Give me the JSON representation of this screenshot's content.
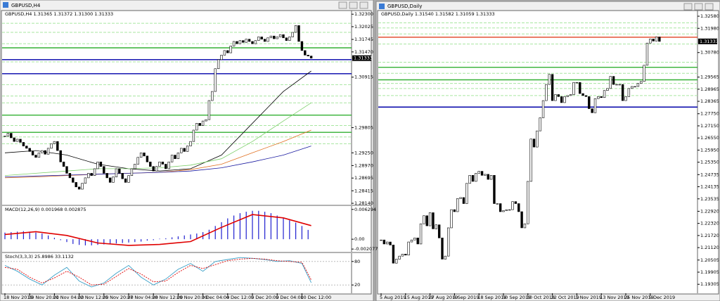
{
  "windows": [
    {
      "title": "GBPUSD,H4",
      "panels": [
        {
          "type": "candlestick",
          "header": "GBPUSD,H4  1.31365 1.31372 1.31300 1.31333",
          "last_price": 1.31333,
          "ylim": [
            1.2811,
            1.3238
          ],
          "yticks": [
            {
              "value": 1.323,
              "label": "1.32300"
            },
            1.32025,
            1.31745,
            {
              "value": 1.3147,
              "label": "1.31470"
            },
            1.30915,
            1.29805,
            {
              "value": 1.2925,
              "label": "1.29250"
            },
            {
              "value": 1.2897,
              "label": "1.28970"
            },
            1.28695,
            1.28415,
            {
              "value": 1.2814,
              "label": "1.28140"
            }
          ],
          "categories": [
            "18 Nov 2019",
            null,
            null,
            null,
            null,
            null,
            null,
            null,
            "19 Nov 20:00",
            null,
            null,
            null,
            null,
            null,
            null,
            null,
            "21 Nov 04:00",
            null,
            null,
            null,
            null,
            null,
            null,
            null,
            "22 Nov 12:00",
            null,
            null,
            null,
            null,
            null,
            null,
            null,
            "25 Nov 20:00",
            null,
            null,
            null,
            null,
            null,
            null,
            null,
            "27 Nov 04:00",
            null,
            null,
            null,
            null,
            null,
            null,
            null,
            "28 Nov 12:00",
            null,
            null,
            null,
            null,
            null,
            null,
            null,
            "29 Nov 20:00",
            null,
            null,
            null,
            null,
            null,
            null,
            null,
            "3 Dec 04:00",
            null,
            null,
            null,
            null,
            null,
            null,
            null,
            "4 Dec 12:00",
            null,
            null,
            null,
            null,
            null,
            null,
            null,
            "5 Dec 20:00",
            null,
            null,
            null,
            null,
            null,
            null,
            null,
            "9 Dec 04:00",
            null,
            null,
            null,
            null,
            null,
            null,
            null,
            "10 Dec 12:00",
            null,
            null,
            null
          ],
          "closes": [
            1.2962,
            1.2968,
            1.2958,
            1.295,
            1.2955,
            1.2948,
            1.294,
            1.2935,
            1.2928,
            1.292,
            1.2915,
            1.2925,
            1.293,
            1.2922,
            1.2935,
            1.2945,
            1.295,
            1.293,
            1.2905,
            1.2895,
            1.288,
            1.287,
            1.286,
            1.285,
            1.2845,
            1.2858,
            1.287,
            1.288,
            1.2875,
            1.289,
            1.2905,
            1.2895,
            1.288,
            1.287,
            1.286,
            1.2872,
            1.289,
            1.288,
            1.2868,
            1.286,
            1.2875,
            1.289,
            1.29,
            1.2915,
            1.2925,
            1.2918,
            1.2905,
            1.2895,
            1.2885,
            1.2895,
            1.2905,
            1.29,
            1.289,
            1.2905,
            1.292,
            1.2912,
            1.2925,
            1.2935,
            1.2928,
            1.294,
            1.295,
            1.2975,
            1.299,
            1.2985,
            1.2995,
            1.2998,
            1.304,
            1.306,
            1.311,
            1.313,
            1.314,
            1.315,
            1.3145,
            1.316,
            1.317,
            1.3165,
            1.3172,
            1.3168,
            1.3175,
            1.317,
            1.3165,
            1.3172,
            1.318,
            1.3175,
            1.317,
            1.3178,
            1.3182,
            1.3176,
            1.318,
            1.3185,
            1.3178,
            1.3172,
            1.318,
            1.319,
            1.3205,
            1.317,
            1.315,
            1.314,
            1.3138,
            1.31333
          ],
          "series": [
            {
              "color": "#000000",
              "x": [
                0,
                10,
                20,
                30,
                40,
                50,
                60,
                70,
                80,
                90,
                99
              ],
              "values": [
                1.2925,
                1.293,
                1.292,
                1.29,
                1.289,
                1.2885,
                1.289,
                1.292,
                1.299,
                1.306,
                1.3105
              ]
            },
            {
              "color": "#7ccf6a",
              "x": [
                0,
                10,
                20,
                30,
                40,
                50,
                60,
                70,
                80,
                90,
                99
              ],
              "values": [
                1.2875,
                1.288,
                1.2885,
                1.289,
                1.289,
                1.2892,
                1.2898,
                1.2912,
                1.295,
                1.2995,
                1.3035
              ]
            },
            {
              "color": "#e07020",
              "x": [
                0,
                10,
                20,
                30,
                40,
                50,
                60,
                70,
                80,
                90,
                99
              ],
              "values": [
                1.287,
                1.2872,
                1.2875,
                1.2878,
                1.288,
                1.2882,
                1.2888,
                1.29,
                1.2925,
                1.295,
                1.2975
              ]
            },
            {
              "color": "#1a1aa0",
              "x": [
                0,
                10,
                20,
                30,
                40,
                50,
                60,
                70,
                80,
                90,
                99
              ],
              "values": [
                1.2872,
                1.2874,
                1.2876,
                1.2878,
                1.288,
                1.2882,
                1.2885,
                1.2892,
                1.2905,
                1.292,
                1.294
              ]
            }
          ],
          "levels": [
            {
              "value": 1.3156,
              "color": "#33b033"
            },
            {
              "value": 1.313,
              "color": "#0000aa"
            },
            {
              "value": 1.3099,
              "color": "#0000aa"
            },
            {
              "value": 1.3008,
              "color": "#33b033"
            },
            {
              "value": 1.297,
              "color": "#33b033"
            }
          ],
          "dashed_levels": [
            1.321,
            1.319,
            1.3165,
            1.3125,
            1.3075,
            1.305,
            1.3035,
            1.2985,
            1.296,
            1.2945
          ],
          "dashed_color": "#a8e6a0"
        },
        {
          "type": "macd",
          "header": "MACD(12,26,9) 0.001968 0.002875",
          "ylim": [
            -0.00265,
            0.007
          ],
          "yticks": [
            0.006294,
            {
              "value": 0,
              "label": "0.00"
            },
            -0.002077
          ],
          "histogram_color": "#2020d0",
          "histogram": [
            0.0014,
            0.0015,
            0.0016,
            0.0017,
            0.0016,
            0.0014,
            0.0012,
            0.0008,
            0.0003,
            -0.0002,
            -0.0006,
            -0.001,
            -0.0012,
            -0.0013,
            -0.0013,
            -0.0012,
            -0.0011,
            -0.001,
            -0.0009,
            -0.0008,
            -0.0007,
            -0.0006,
            -0.0005,
            -0.0003,
            -0.0002,
            0.0001,
            0.0002,
            0.0004,
            0.0006,
            0.0008,
            0.001,
            0.0012,
            0.0015,
            0.002,
            0.0028,
            0.0036,
            0.0044,
            0.005,
            0.0055,
            0.0058,
            0.006,
            0.006,
            0.0058,
            0.0055,
            0.005,
            0.0045,
            0.004,
            0.0035,
            0.0028,
            0.001968
          ],
          "signal": {
            "color": "#e00000",
            "x": [
              0,
              10,
              20,
              30,
              40,
              50,
              60,
              70,
              80,
              90,
              99
            ],
            "values": [
              0.001,
              0.0016,
              0.0008,
              -0.0008,
              -0.0013,
              -0.0011,
              -0.0005,
              0.0025,
              0.0052,
              0.0045,
              0.002875
            ]
          }
        },
        {
          "type": "stochastic",
          "header": "Stoch(3,3,3) 25.8986 33.1132",
          "ylim": [
            -1.2,
            101.2
          ],
          "yticks": [
            80,
            20
          ],
          "series": [
            {
              "color": "#3aa0c8",
              "dash": false,
              "x": [
                0,
                4,
                8,
                12,
                16,
                20,
                24,
                28,
                32,
                36,
                40,
                44,
                48,
                52,
                56,
                60,
                64,
                68,
                72,
                76,
                80,
                84,
                88,
                92,
                96,
                99
              ],
              "values": [
                70,
                55,
                35,
                20,
                45,
                65,
                30,
                15,
                25,
                50,
                70,
                40,
                20,
                35,
                60,
                75,
                55,
                80,
                85,
                90,
                88,
                85,
                80,
                82,
                75,
                25.8986
              ]
            },
            {
              "color": "#e00000",
              "dash": true,
              "x": [
                0,
                4,
                8,
                12,
                16,
                20,
                24,
                28,
                32,
                36,
                40,
                44,
                48,
                52,
                56,
                60,
                64,
                68,
                72,
                76,
                80,
                84,
                88,
                92,
                96,
                99
              ],
              "values": [
                65,
                60,
                40,
                25,
                38,
                55,
                40,
                20,
                22,
                42,
                62,
                48,
                28,
                30,
                52,
                70,
                62,
                72,
                82,
                86,
                88,
                86,
                82,
                80,
                78,
                33.1132
              ]
            }
          ]
        }
      ]
    },
    {
      "title": "GBPUSD,Daily",
      "panels": [
        {
          "type": "candlestick",
          "header": "GBPUSD,Daily  1.31540 1.31582 1.31059 1.31333",
          "last_price": 1.31333,
          "ylim": [
            1.1886,
            1.3286
          ],
          "yticks": [
            {
              "value": 1.3258,
              "label": "1.32580"
            },
            {
              "value": 1.3198,
              "label": "1.31980"
            },
            {
              "value": 1.3078,
              "label": "1.30780"
            },
            1.29565,
            1.28965,
            1.28365,
            {
              "value": 1.2775,
              "label": "1.27750"
            },
            {
              "value": 1.2715,
              "label": "1.27150"
            },
            {
              "value": 1.2655,
              "label": "1.26550"
            },
            {
              "value": 1.2595,
              "label": "1.25950"
            },
            {
              "value": 1.2535,
              "label": "1.25350"
            },
            1.24735,
            1.24135,
            1.23535,
            {
              "value": 1.2292,
              "label": "1.22920"
            },
            {
              "value": 1.2232,
              "label": "1.22320"
            },
            {
              "value": 1.2172,
              "label": "1.21720"
            },
            {
              "value": 1.2112,
              "label": "1.21120"
            },
            1.20505,
            1.19905,
            1.19305
          ],
          "categories": [
            "5 Aug 2019",
            null,
            null,
            null,
            null,
            null,
            null,
            null,
            "15 Aug 2019",
            null,
            null,
            null,
            null,
            null,
            null,
            null,
            "27 Aug 2019",
            null,
            null,
            null,
            null,
            null,
            null,
            null,
            "6 Sep 2019",
            null,
            null,
            null,
            null,
            null,
            null,
            null,
            "18 Sep 2019",
            null,
            null,
            null,
            null,
            null,
            null,
            null,
            "30 Sep 2019",
            null,
            null,
            null,
            null,
            null,
            null,
            null,
            "10 Oct 2019",
            null,
            null,
            null,
            null,
            null,
            null,
            null,
            "22 Oct 2019",
            null,
            null,
            null,
            null,
            null,
            null,
            null,
            "1 Nov 2019",
            null,
            null,
            null,
            null,
            null,
            null,
            null,
            "13 Nov 2019",
            null,
            null,
            null,
            null,
            null,
            null,
            null,
            "25 Nov 2019",
            null,
            null,
            null,
            null,
            null,
            null,
            null,
            "5 Dec 2019",
            null,
            null,
            null
          ],
          "closes": [
            1.215,
            1.213,
            1.214,
            1.2125,
            1.2035,
            1.2055,
            1.207,
            1.208,
            1.2075,
            1.214,
            1.215,
            1.216,
            1.213,
            1.223,
            1.227,
            1.222,
            1.2285,
            1.2205,
            1.2225,
            1.216,
            1.2055,
            1.207,
            1.221,
            1.23,
            1.229,
            1.2355,
            1.236,
            1.233,
            1.243,
            1.247,
            1.244,
            1.248,
            1.249,
            1.247,
            1.2475,
            1.245,
            1.247,
            1.233,
            1.233,
            1.229,
            1.2295,
            1.23,
            1.23,
            1.234,
            1.233,
            1.229,
            1.221,
            1.223,
            1.244,
            1.265,
            1.261,
            1.269,
            1.2755,
            1.284,
            1.292,
            1.297,
            1.284,
            1.287,
            1.286,
            1.283,
            1.286,
            1.2865,
            1.287,
            1.293,
            1.293,
            1.2875,
            1.2865,
            1.286,
            1.28,
            1.278,
            1.285,
            1.286,
            1.2855,
            1.289,
            1.29,
            1.296,
            1.292,
            1.292,
            1.292,
            1.284,
            1.286,
            1.29,
            1.291,
            1.291,
            1.2925,
            1.2935,
            1.3015,
            1.3125,
            1.3145,
            1.3135,
            1.3155,
            1.31333
          ],
          "series": [],
          "levels": [
            {
              "value": 1.3154,
              "color": "#e04020"
            },
            {
              "value": 1.3005,
              "color": "#33b033"
            },
            {
              "value": 1.2943,
              "color": "#33b033"
            },
            {
              "value": 1.2808,
              "color": "#0000aa"
            }
          ],
          "dashed_levels": [
            1.3225,
            1.32,
            1.317,
            1.312,
            1.303,
            1.2975,
            1.2925,
            1.29,
            1.2865
          ],
          "dashed_color": "#a8e6a0"
        }
      ]
    }
  ]
}
